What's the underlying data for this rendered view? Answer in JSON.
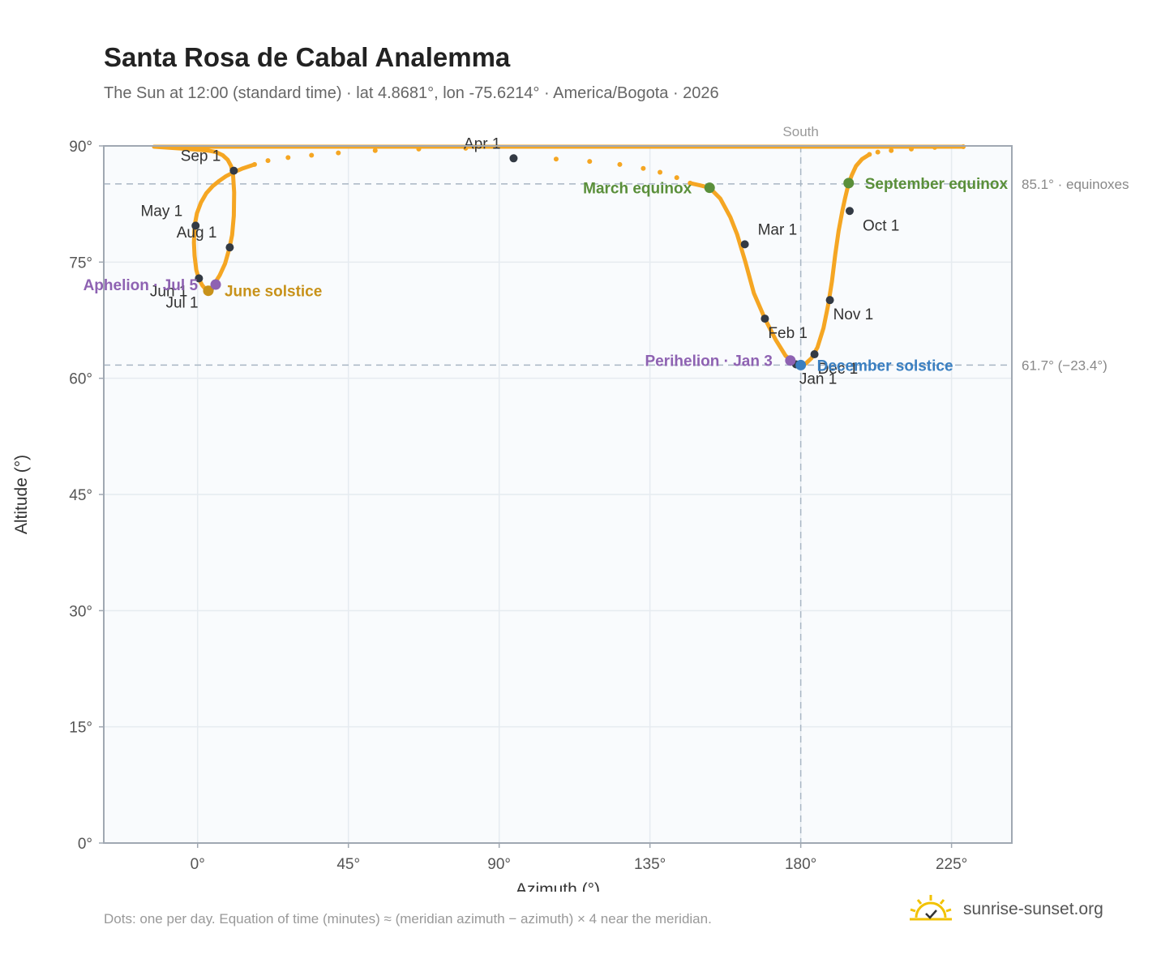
{
  "title": "Santa Rosa de Cabal Analemma",
  "subtitle": "The Sun at 12:00 (standard time) · lat 4.8681°, lon -75.6214° · America/Bogota · 2026",
  "footnote": "Dots: one per day. Equation of time (minutes) ≈ (meridian azimuth − azimuth) × 4 near the meridian.",
  "brand": "sunrise-sunset.org",
  "colors": {
    "path": "#f5a623",
    "month_dot": "#333a44",
    "equinox": "#5a8f3a",
    "june_solstice": "#c8921a",
    "december_solstice": "#3a7fc1",
    "apsis": "#8e62b2",
    "plot_bg": "#f9fbfd",
    "grid": "#e6ebf0",
    "frame": "#a0a8b2",
    "ref_line": "#a9b6c4"
  },
  "chart_data": {
    "type": "scatter",
    "xlabel": "Azimuth (°)",
    "ylabel": "Altitude (°)",
    "xlim": [
      -28,
      243
    ],
    "ylim": [
      0,
      90
    ],
    "x_ticks": [
      0,
      45,
      90,
      135,
      180,
      225
    ],
    "x_tick_labels": [
      "0°",
      "45°",
      "90°",
      "135°",
      "180°",
      "225°"
    ],
    "y_ticks": [
      0,
      15,
      30,
      45,
      60,
      75,
      90
    ],
    "y_tick_labels": [
      "0°",
      "15°",
      "30°",
      "45°",
      "60°",
      "75°",
      "90°"
    ],
    "grid": true,
    "south": {
      "azimuth": 180,
      "label": "South"
    },
    "reference_lines": [
      {
        "altitude": 85.1,
        "label": "85.1° · equinoxes"
      },
      {
        "altitude": 61.7,
        "label": "61.7° (−23.4°)"
      }
    ],
    "path": [
      [
        180,
        61.7
      ],
      [
        181.5,
        61.9
      ],
      [
        183.2,
        62.6
      ],
      [
        185,
        64
      ],
      [
        186.8,
        66.5
      ],
      [
        188.2,
        69.5
      ],
      [
        189.3,
        72.5
      ],
      [
        190.3,
        76
      ],
      [
        191.3,
        79
      ],
      [
        192.4,
        81.6
      ],
      [
        193.2,
        83.2
      ],
      [
        193.8,
        84.3
      ],
      [
        194.3,
        85.1
      ],
      [
        195.2,
        86.2
      ],
      [
        196.5,
        87.4
      ],
      [
        198.3,
        88.3
      ],
      [
        200.5,
        88.9
      ],
      [
        203,
        89.2
      ],
      [
        207,
        89.4
      ],
      [
        213,
        89.6
      ],
      [
        220,
        89.8
      ],
      [
        228.5,
        89.9
      ],
      [
        -13,
        89.9
      ],
      [
        -3,
        89.6
      ],
      [
        3,
        89.4
      ],
      [
        5.5,
        89.2
      ],
      [
        7.5,
        88.8
      ],
      [
        9,
        88.2
      ],
      [
        10,
        87.4
      ],
      [
        10.6,
        86.2
      ],
      [
        10.9,
        84
      ],
      [
        10.8,
        81
      ],
      [
        10.3,
        78.5
      ],
      [
        9.5,
        76.8
      ],
      [
        8.2,
        74.8
      ],
      [
        6.6,
        73.3
      ],
      [
        5.3,
        72.4
      ],
      [
        4.2,
        71.7
      ],
      [
        3.3,
        71.4
      ],
      [
        2.4,
        71.5
      ],
      [
        1.4,
        72
      ],
      [
        0.4,
        72.8
      ],
      [
        -0.4,
        74
      ],
      [
        -0.9,
        75.8
      ],
      [
        -1.1,
        77.5
      ],
      [
        -0.9,
        79.7
      ],
      [
        -0.2,
        81.3
      ],
      [
        1,
        82.7
      ],
      [
        2.6,
        83.9
      ],
      [
        4.5,
        84.8
      ],
      [
        6.5,
        85.5
      ],
      [
        8.5,
        86.1
      ],
      [
        10.8,
        86.6
      ],
      [
        13.5,
        87.1
      ],
      [
        17,
        87.6
      ],
      [
        21,
        88.1
      ],
      [
        27,
        88.5
      ],
      [
        34,
        88.8
      ],
      [
        42,
        89.1
      ],
      [
        53,
        89.4
      ],
      [
        66,
        89.6
      ],
      [
        80,
        89.7
      ],
      [
        94.3,
        88.4
      ],
      [
        107,
        88.3
      ],
      [
        117,
        88
      ],
      [
        126,
        87.6
      ],
      [
        133,
        87.1
      ],
      [
        138,
        86.6
      ],
      [
        143,
        85.9
      ],
      [
        147,
        85.2
      ],
      [
        150,
        84.9
      ],
      [
        152.8,
        84.6
      ],
      [
        156,
        83.2
      ],
      [
        159,
        80.8
      ],
      [
        161,
        78.6
      ],
      [
        163.5,
        75
      ],
      [
        166,
        71
      ],
      [
        169.3,
        67.7
      ],
      [
        172.5,
        65
      ],
      [
        175.5,
        62.9
      ],
      [
        177.5,
        62.2
      ],
      [
        180,
        61.7
      ]
    ],
    "sparse_segment_start": 16,
    "sparse_segment_end": 20,
    "sparse_segment2_start": 54,
    "sparse_segment2_end": 69,
    "month_markers": [
      {
        "label": "Jan 1",
        "azimuth": 178.6,
        "altitude": 61.8,
        "label_pos": "below-right"
      },
      {
        "label": "Feb 1",
        "azimuth": 169.3,
        "altitude": 67.7,
        "label_pos": "below-right"
      },
      {
        "label": "Mar 1",
        "azimuth": 163.3,
        "altitude": 77.3,
        "label_pos": "above-right"
      },
      {
        "label": "Apr 1",
        "azimuth": 94.3,
        "altitude": 88.4,
        "label_pos": "above-left"
      },
      {
        "label": "May 1",
        "azimuth": -0.6,
        "altitude": 79.7,
        "label_pos": "above-left"
      },
      {
        "label": "Jun 1",
        "azimuth": 0.4,
        "altitude": 72.9,
        "label_pos": "below-left"
      },
      {
        "label": "Jul 1",
        "azimuth": 3.6,
        "altitude": 71.4,
        "label_pos": "below-left"
      },
      {
        "label": "Aug 1",
        "azimuth": 9.6,
        "altitude": 76.9,
        "label_pos": "above-left"
      },
      {
        "label": "Sep 1",
        "azimuth": 10.8,
        "altitude": 86.8,
        "label_pos": "above-left"
      },
      {
        "label": "Oct 1",
        "azimuth": 194.6,
        "altitude": 81.6,
        "label_pos": "above-right-near"
      },
      {
        "label": "Nov 1",
        "azimuth": 188.7,
        "altitude": 70.1,
        "label_pos": "below-right"
      },
      {
        "label": "Dec 1",
        "azimuth": 184.1,
        "altitude": 63.1,
        "label_pos": "below-right"
      }
    ],
    "events": [
      {
        "label": "March equinox",
        "azimuth": 152.8,
        "altitude": 84.6,
        "color_key": "equinox",
        "label_side": "left"
      },
      {
        "label": "September equinox",
        "azimuth": 194.3,
        "altitude": 85.2,
        "color_key": "equinox",
        "label_side": "right"
      },
      {
        "label": "June solstice",
        "azimuth": 3.2,
        "altitude": 71.3,
        "color_key": "june_solstice",
        "label_side": "right"
      },
      {
        "label": "December solstice",
        "azimuth": 180,
        "altitude": 61.7,
        "color_key": "december_solstice",
        "label_side": "right"
      },
      {
        "label": "Perihelion · Jan 3",
        "azimuth": 176.9,
        "altitude": 62.3,
        "color_key": "apsis",
        "label_side": "left"
      },
      {
        "label": "Aphelion · Jul 5",
        "azimuth": 5.4,
        "altitude": 72.1,
        "color_key": "apsis",
        "label_side": "left"
      }
    ]
  }
}
